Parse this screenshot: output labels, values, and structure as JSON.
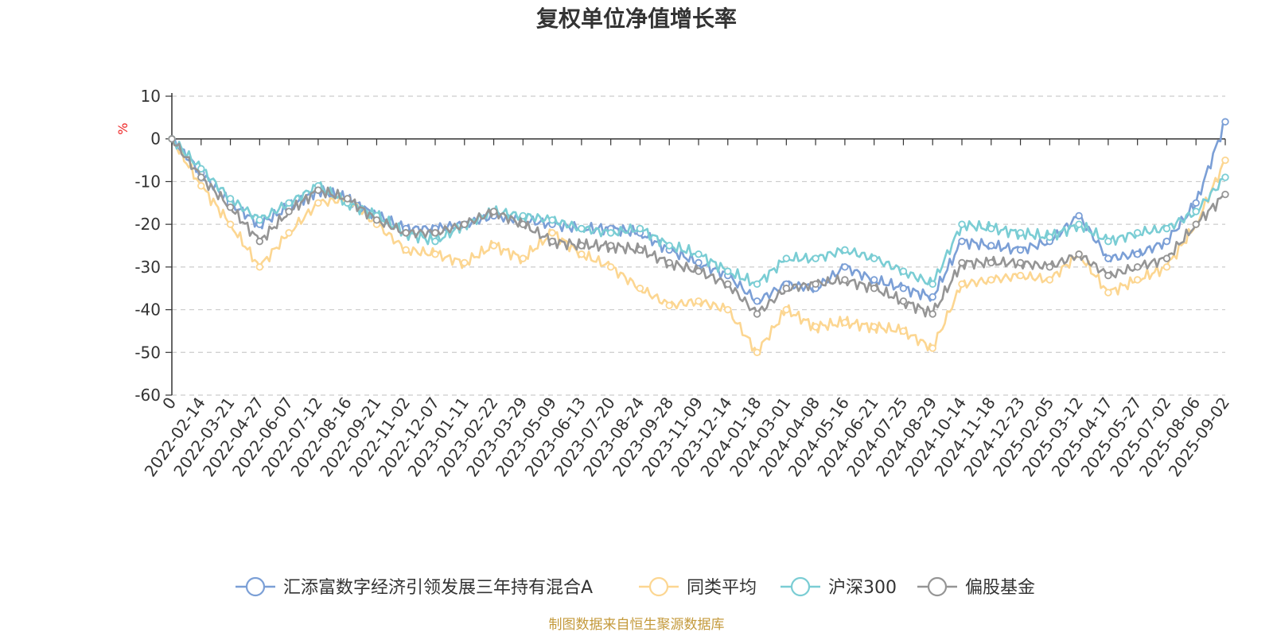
{
  "chart_data": {
    "type": "line",
    "title": "复权单位净值增长率",
    "ylabel": "%",
    "ylim": [
      -60,
      10
    ],
    "yticks": [
      "10",
      "0",
      "-10",
      "-20",
      "-30",
      "-40",
      "-50",
      "-60"
    ],
    "grid": true,
    "legend_position": "bottom",
    "x": [
      "0",
      "2022-02-14",
      "2022-03-21",
      "2022-04-27",
      "2022-06-07",
      "2022-07-12",
      "2022-08-16",
      "2022-09-21",
      "2022-11-02",
      "2022-12-07",
      "2023-01-11",
      "2023-02-22",
      "2023-03-29",
      "2023-05-09",
      "2023-06-13",
      "2023-07-20",
      "2023-08-24",
      "2023-09-28",
      "2023-11-09",
      "2023-12-14",
      "2024-01-18",
      "2024-03-01",
      "2024-04-08",
      "2024-05-16",
      "2024-06-21",
      "2024-07-25",
      "2024-08-29",
      "2024-10-14",
      "2024-11-18",
      "2024-12-23",
      "2025-02-05",
      "2025-03-12",
      "2025-04-17",
      "2025-05-27",
      "2025-07-02",
      "2025-08-06",
      "2025-09-02"
    ],
    "series": [
      {
        "name": "汇添富数字经济引领发展三年持有混合A",
        "color": "#7B9FD6",
        "values": [
          0,
          -8,
          -15,
          -20,
          -16,
          -12,
          -14,
          -18,
          -21,
          -21,
          -20,
          -18,
          -19,
          -20,
          -21,
          -21,
          -22,
          -26,
          -29,
          -32,
          -38,
          -34,
          -35,
          -30,
          -33,
          -35,
          -37,
          -24,
          -25,
          -26,
          -24,
          -18,
          -28,
          -27,
          -24,
          -15,
          4
        ]
      },
      {
        "name": "同类平均",
        "color": "#FCD691",
        "values": [
          0,
          -11,
          -20,
          -30,
          -22,
          -15,
          -14,
          -20,
          -26,
          -27,
          -29,
          -25,
          -28,
          -22,
          -27,
          -30,
          -35,
          -39,
          -38,
          -40,
          -50,
          -40,
          -44,
          -43,
          -44,
          -45,
          -49,
          -34,
          -33,
          -32,
          -33,
          -27,
          -36,
          -33,
          -30,
          -20,
          -5
        ]
      },
      {
        "name": "沪深300",
        "color": "#7ACDD4",
        "values": [
          0,
          -7,
          -14,
          -19,
          -15,
          -11,
          -15,
          -18,
          -22,
          -24,
          -20,
          -17,
          -18,
          -19,
          -21,
          -22,
          -21,
          -25,
          -27,
          -31,
          -34,
          -28,
          -28,
          -26,
          -28,
          -31,
          -34,
          -20,
          -21,
          -22,
          -23,
          -20,
          -24,
          -22,
          -21,
          -17,
          -9
        ]
      },
      {
        "name": "偏股基金",
        "color": "#959595",
        "values": [
          0,
          -9,
          -16,
          -24,
          -17,
          -12,
          -14,
          -19,
          -22,
          -22,
          -20,
          -17,
          -20,
          -24,
          -25,
          -25,
          -26,
          -29,
          -31,
          -34,
          -41,
          -35,
          -34,
          -33,
          -35,
          -38,
          -41,
          -29,
          -29,
          -29,
          -30,
          -27,
          -32,
          -30,
          -28,
          -20,
          -13
        ]
      }
    ]
  },
  "source_text": "制图数据来自恒生聚源数据库"
}
